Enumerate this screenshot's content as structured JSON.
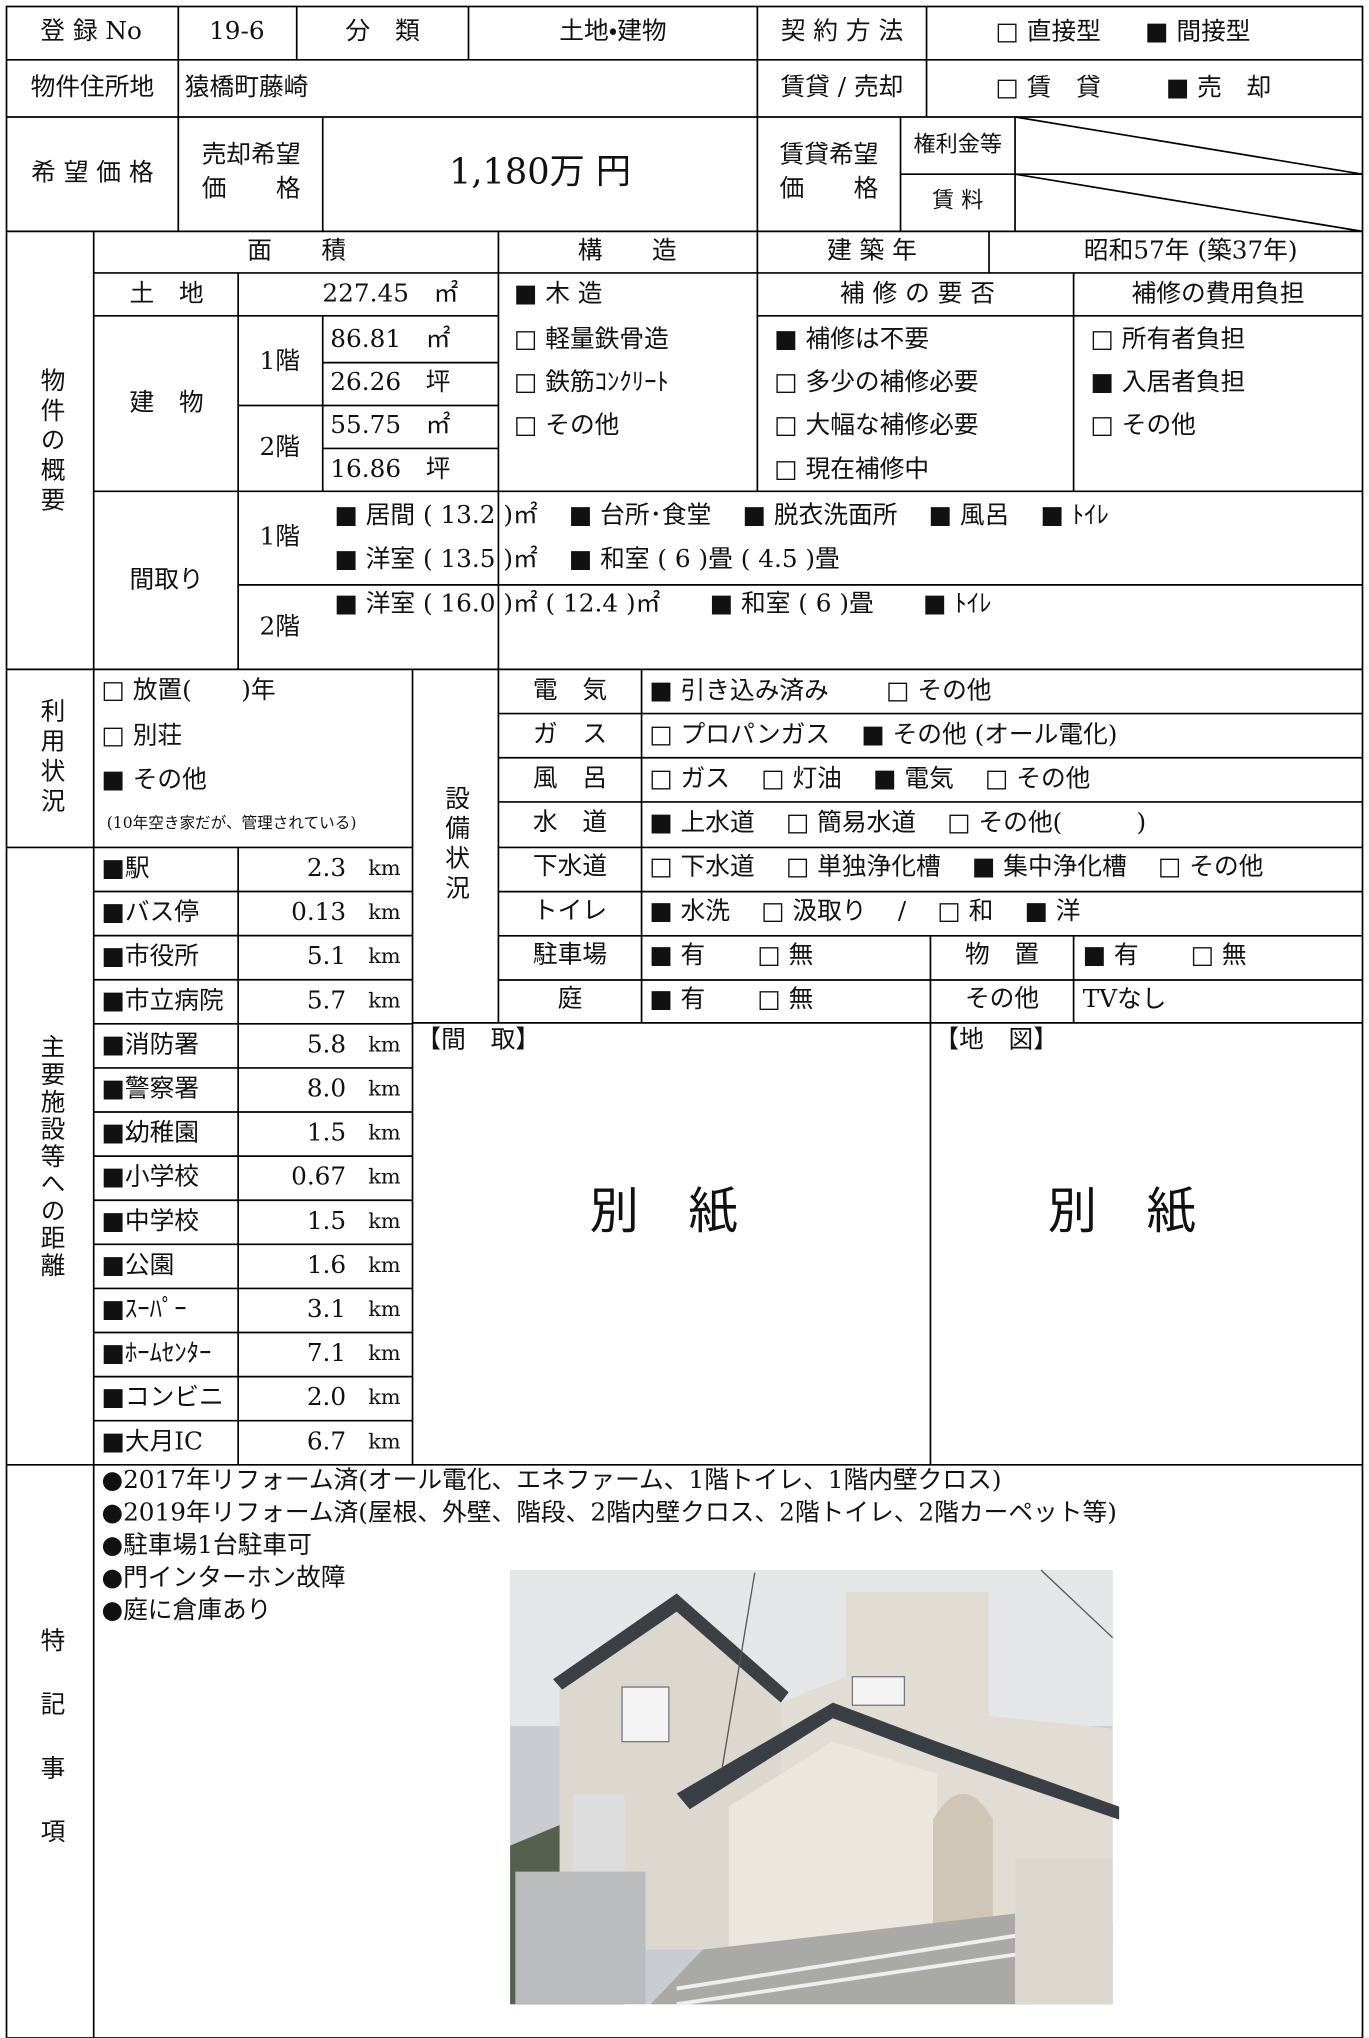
{
  "header": {
    "reg_no_label": "登 録 No",
    "reg_no": "19-6",
    "category_label": "分　類",
    "category": "土地・建物",
    "contract_label": "契 約 方 法",
    "contract_options": [
      "□ 直接型",
      "■ 間接型"
    ],
    "address_label": "物件住所地",
    "address": "猿橋町藤崎",
    "deal_label": "賃貸 / 売却",
    "deal_options": [
      "□ 賃　貸",
      "■ 売　却"
    ],
    "price_label": "希 望 価 格",
    "sale_price_label": [
      "売却希望",
      "価　　格"
    ],
    "sale_price": "1,180万 円",
    "rent_price_label": [
      "賃貸希望",
      "価　　格"
    ],
    "key_money_label": "権利金等",
    "rent_label": "賃 料"
  },
  "overview": {
    "label": "物件の概要",
    "area_label": "面　　積",
    "structure_label": "構　　造",
    "built_label": "建 築 年",
    "built": "昭和57年 (築37年)",
    "land_label": "土　地",
    "land_area": "227.45　㎡",
    "building_label": "建　物",
    "floor1_label": "1階",
    "floor1_area": [
      "86.81　㎡",
      "26.26　坪"
    ],
    "floor2_label": "2階",
    "floor2_area": [
      "55.75　㎡",
      "16.86　坪"
    ],
    "structure_options": [
      "■ 木 造",
      "□ 軽量鉄骨造",
      "□ 鉄筋ｺﾝｸﾘｰﾄ",
      "□ その他"
    ],
    "repair_label": "補 修 の 要 否",
    "repair_options": [
      "■ 補修は不要",
      "□ 多少の補修必要",
      "□ 大幅な補修必要",
      "□ 現在補修中"
    ],
    "repair_cost_label": "補修の費用負担",
    "repair_cost_options": [
      "□ 所有者負担",
      "■ 入居者負担",
      "□ その他"
    ],
    "layout_label": "間取り",
    "layout_floor1_label": "1階",
    "layout_floor1": [
      [
        "■ 居間 ( 13.2 )㎡",
        "■ 台所･食堂",
        "■ 脱衣洗面所",
        "■ 風呂",
        "■ ﾄｲﾚ"
      ],
      [
        "■ 洋室 ( 13.5 )㎡",
        "■ 和室 ( 6 )畳 ( 4.5 )畳"
      ]
    ],
    "layout_floor2_label": "2階",
    "layout_floor2": [
      "■ 洋室 ( 16.0 )㎡ ( 12.4 )㎡",
      "■ 和室 ( 6 )畳",
      "■ ﾄｲﾚ"
    ]
  },
  "usage": {
    "label": "利用状況",
    "options": [
      "□ 放置(　　)年",
      "□ 別荘",
      "■ その他"
    ],
    "note": "(10年空き家だが、管理されている)"
  },
  "facilities": {
    "label": "設備状況",
    "rows": [
      {
        "name": "電　気",
        "options": [
          "■ 引き込み済み",
          "□ その他"
        ]
      },
      {
        "name": "ガ　ス",
        "options": [
          "□ プロパンガス",
          "■ その他 (オール電化)"
        ]
      },
      {
        "name": "風　呂",
        "options": [
          "□ ガス",
          "□ 灯油",
          "■ 電気",
          "□ その他"
        ]
      },
      {
        "name": "水　道",
        "options": [
          "■ 上水道",
          "□ 簡易水道",
          "□ その他(　　　)"
        ]
      },
      {
        "name": "下水道",
        "options": [
          "□ 下水道",
          "□ 単独浄化槽",
          "■ 集中浄化槽",
          "□ その他"
        ]
      },
      {
        "name": "トイレ",
        "options": [
          "■ 水洗",
          "□ 汲取り",
          "/",
          "□ 和",
          "■ 洋"
        ]
      },
      {
        "name": "駐車場",
        "options": [
          "■ 有",
          "□ 無"
        ],
        "extra_name": "物　置",
        "extra_options": [
          "■ 有",
          "□ 無"
        ]
      },
      {
        "name": "庭",
        "options": [
          "■ 有",
          "□ 無"
        ],
        "extra_name": "その他",
        "extra_options": [
          "TVなし"
        ]
      }
    ]
  },
  "distances": {
    "label": "主要施設等への距離",
    "rows": [
      {
        "name": "■駅",
        "distance": "2.3",
        "unit": "km"
      },
      {
        "name": "■バス停",
        "distance": "0.13",
        "unit": "km"
      },
      {
        "name": "■市役所",
        "distance": "5.1",
        "unit": "km"
      },
      {
        "name": "■市立病院",
        "distance": "5.7",
        "unit": "km"
      },
      {
        "name": "■消防署",
        "distance": "5.8",
        "unit": "km"
      },
      {
        "name": "■警察署",
        "distance": "8.0",
        "unit": "km"
      },
      {
        "name": "■幼稚園",
        "distance": "1.5",
        "unit": "km"
      },
      {
        "name": "■小学校",
        "distance": "0.67",
        "unit": "km"
      },
      {
        "name": "■中学校",
        "distance": "1.5",
        "unit": "km"
      },
      {
        "name": "■公園",
        "distance": "1.6",
        "unit": "km"
      },
      {
        "name": "■ｽｰﾊﾟｰ",
        "distance": "3.1",
        "unit": "km"
      },
      {
        "name": "■ﾎｰﾑｾﾝﾀｰ",
        "distance": "7.1",
        "unit": "km"
      },
      {
        "name": "■コンビニ",
        "distance": "2.0",
        "unit": "km"
      },
      {
        "name": "■大月IC",
        "distance": "6.7",
        "unit": "km"
      }
    ]
  },
  "attachments": {
    "floor_plan_label": "【間　取】",
    "floor_plan": "別　紙",
    "map_label": "【地　図】",
    "map": "別　紙"
  },
  "remarks": {
    "label": "特記事項",
    "items": [
      "●2017年リフォーム済(オール電化、エネファーム、1階トイレ、1階内壁クロス)",
      "●2019年リフォーム済(屋根、外壁、階段、2階内壁クロス、2階トイレ、2階カーペット等)",
      "●駐車場1台駐車可",
      "●門インターホン故障",
      "●庭に倉庫あり"
    ]
  }
}
